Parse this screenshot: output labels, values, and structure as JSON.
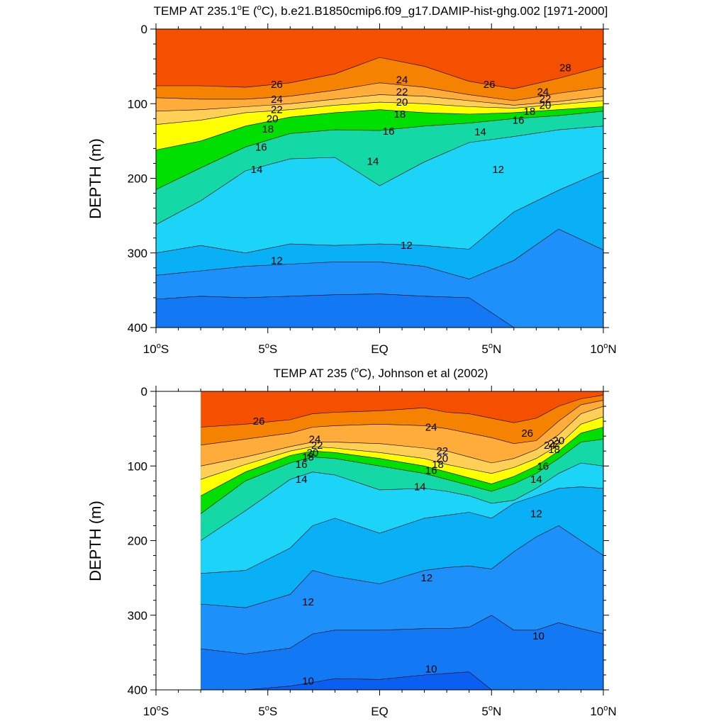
{
  "chart_data": [
    {
      "type": "heatmap",
      "title": "TEMP AT 235.1°E (°C), b.e21.B1850cmip6.f09_g17.DAMIP-hist-ghg.002 [1971-2000]",
      "title_parts": {
        "pre": "TEMP AT 235.1",
        "deg1": "o",
        "mid": "E (",
        "deg2": "o",
        "post": "C), b.e21.B1850cmip6.f09_g17.DAMIP-hist-ghg.002 [1971-2000]"
      },
      "ylabel": "DEPTH (m)",
      "xlabel": "",
      "xlim": [
        -10,
        10
      ],
      "ylim": [
        400,
        0
      ],
      "x_ticks": [
        {
          "value": -10,
          "num": "10",
          "deg": "o",
          "suf": "S"
        },
        {
          "value": -5,
          "num": "5",
          "deg": "o",
          "suf": "S"
        },
        {
          "value": 0,
          "num": "EQ",
          "deg": "",
          "suf": ""
        },
        {
          "value": 5,
          "num": "5",
          "deg": "o",
          "suf": "N"
        },
        {
          "value": 10,
          "num": "10",
          "deg": "o",
          "suf": "N"
        }
      ],
      "y_ticks": [
        "0",
        "100",
        "200",
        "300",
        "400"
      ],
      "data_xlim": [
        -10,
        10
      ],
      "contour_levels": [
        9,
        10,
        11,
        12,
        13,
        14,
        15,
        16,
        17,
        18,
        19,
        20,
        21,
        22,
        23,
        24,
        25,
        26,
        27,
        28
      ],
      "isotherm_depths": {
        "x": [
          -10,
          -8,
          -6,
          -4,
          -2,
          0,
          2,
          4,
          6,
          8,
          10
        ],
        "t26": [
          76,
          76,
          78,
          72,
          60,
          38,
          50,
          70,
          80,
          66,
          50
        ],
        "t24": [
          92,
          94,
          94,
          90,
          82,
          72,
          78,
          88,
          96,
          86,
          78
        ],
        "t22": [
          110,
          108,
          104,
          100,
          94,
          88,
          90,
          96,
          102,
          97,
          90
        ],
        "t20": [
          128,
          122,
          112,
          108,
          102,
          98,
          100,
          104,
          106,
          101,
          96
        ],
        "t18": [
          162,
          150,
          130,
          118,
          112,
          108,
          112,
          114,
          112,
          108,
          104
        ],
        "t16": [
          215,
          186,
          158,
          140,
          135,
          136,
          130,
          126,
          120,
          116,
          110
        ],
        "t14": [
          262,
          230,
          190,
          174,
          172,
          210,
          178,
          152,
          144,
          135,
          130
        ],
        "t12": [
          300,
          290,
          300,
          288,
          290,
          288,
          290,
          295,
          245,
          216,
          190
        ],
        "t11": [
          330,
          324,
          318,
          315,
          312,
          312,
          318,
          335,
          310,
          268,
          296
        ],
        "t10": [
          362,
          358,
          360,
          358,
          356,
          355,
          358,
          360,
          400,
          400,
          400
        ]
      },
      "contour_labels": [
        {
          "text": "26",
          "x": -4.6,
          "y": 74
        },
        {
          "text": "24",
          "x": -4.6,
          "y": 94
        },
        {
          "text": "22",
          "x": -4.6,
          "y": 108
        },
        {
          "text": "20",
          "x": -4.8,
          "y": 120
        },
        {
          "text": "18",
          "x": -5.0,
          "y": 134
        },
        {
          "text": "16",
          "x": -5.3,
          "y": 158
        },
        {
          "text": "14",
          "x": -5.5,
          "y": 188
        },
        {
          "text": "12",
          "x": -4.6,
          "y": 310
        },
        {
          "text": "24",
          "x": 1.0,
          "y": 68
        },
        {
          "text": "22",
          "x": 1.0,
          "y": 84
        },
        {
          "text": "20",
          "x": 1.0,
          "y": 98
        },
        {
          "text": "18",
          "x": 0.9,
          "y": 114
        },
        {
          "text": "16",
          "x": 0.4,
          "y": 137
        },
        {
          "text": "14",
          "x": -0.3,
          "y": 177
        },
        {
          "text": "12",
          "x": 1.2,
          "y": 290
        },
        {
          "text": "26",
          "x": 4.9,
          "y": 74
        },
        {
          "text": "14",
          "x": 4.5,
          "y": 138
        },
        {
          "text": "12",
          "x": 5.3,
          "y": 188
        },
        {
          "text": "28",
          "x": 8.3,
          "y": 52
        },
        {
          "text": "24",
          "x": 7.3,
          "y": 84
        },
        {
          "text": "22",
          "x": 7.4,
          "y": 93
        },
        {
          "text": "20",
          "x": 7.4,
          "y": 102
        },
        {
          "text": "18",
          "x": 6.7,
          "y": 110
        },
        {
          "text": "16",
          "x": 6.2,
          "y": 122
        }
      ]
    },
    {
      "type": "heatmap",
      "title": "TEMP AT 235 (°C), Johnson et al (2002)",
      "title_parts": {
        "pre": "TEMP AT 235 (",
        "deg1": "o",
        "mid": "C), Johnson et al (2002)",
        "deg2": "",
        "post": ""
      },
      "ylabel": "DEPTH (m)",
      "xlabel": "",
      "xlim": [
        -10,
        10
      ],
      "ylim": [
        400,
        0
      ],
      "x_ticks": [
        {
          "value": -10,
          "num": "10",
          "deg": "o",
          "suf": "S"
        },
        {
          "value": -5,
          "num": "5",
          "deg": "o",
          "suf": "S"
        },
        {
          "value": 0,
          "num": "EQ",
          "deg": "",
          "suf": ""
        },
        {
          "value": 5,
          "num": "5",
          "deg": "o",
          "suf": "N"
        },
        {
          "value": 10,
          "num": "10",
          "deg": "o",
          "suf": "N"
        }
      ],
      "y_ticks": [
        "0",
        "100",
        "200",
        "300",
        "400"
      ],
      "data_xlim": [
        -8,
        10
      ],
      "contour_levels": [
        9,
        10,
        11,
        12,
        13,
        14,
        15,
        16,
        17,
        18,
        19,
        20,
        21,
        22,
        23,
        24,
        25,
        26,
        27,
        28
      ],
      "isotherm_depths": {
        "x": [
          -8,
          -6,
          -4,
          -3,
          -2,
          0,
          2,
          3,
          4,
          5,
          6,
          7,
          8,
          9,
          10
        ],
        "t26": [
          48,
          44,
          38,
          30,
          28,
          26,
          22,
          28,
          30,
          36,
          42,
          36,
          20,
          10,
          5
        ],
        "t24": [
          72,
          64,
          56,
          48,
          46,
          44,
          46,
          50,
          56,
          62,
          70,
          66,
          40,
          18,
          12
        ],
        "t22": [
          100,
          88,
          74,
          68,
          68,
          70,
          76,
          80,
          88,
          96,
          90,
          78,
          58,
          30,
          20
        ],
        "t20": [
          118,
          98,
          80,
          74,
          76,
          82,
          90,
          98,
          104,
          110,
          102,
          90,
          72,
          44,
          34
        ],
        "t18": [
          140,
          108,
          86,
          80,
          82,
          90,
          100,
          108,
          116,
          124,
          114,
          100,
          80,
          56,
          48
        ],
        "t16": [
          164,
          120,
          96,
          88,
          90,
          100,
          110,
          118,
          126,
          134,
          124,
          110,
          90,
          68,
          64
        ],
        "t14": [
          200,
          160,
          118,
          108,
          112,
          132,
          130,
          134,
          140,
          150,
          146,
          130,
          110,
          96,
          100
        ],
        "t12": [
          244,
          240,
          210,
          180,
          170,
          190,
          170,
          166,
          162,
          170,
          150,
          140,
          130,
          128,
          130
        ],
        "t11": [
          285,
          290,
          272,
          240,
          248,
          258,
          240,
          236,
          234,
          238,
          215,
          195,
          180,
          200,
          220
        ],
        "t10": [
          345,
          352,
          344,
          325,
          320,
          320,
          318,
          318,
          316,
          300,
          320,
          320,
          310,
          318,
          325
        ],
        "t9": [
          400,
          400,
          395,
          390,
          385,
          386,
          380,
          378,
          376,
          400,
          400,
          400,
          400,
          400,
          400
        ]
      },
      "contour_labels": [
        {
          "text": "26",
          "x": -5.4,
          "y": 40
        },
        {
          "text": "24",
          "x": -2.9,
          "y": 64
        },
        {
          "text": "22",
          "x": -2.8,
          "y": 72
        },
        {
          "text": "20",
          "x": -3.0,
          "y": 82
        },
        {
          "text": "18",
          "x": -3.2,
          "y": 88
        },
        {
          "text": "16",
          "x": -3.5,
          "y": 98
        },
        {
          "text": "14",
          "x": -3.5,
          "y": 118
        },
        {
          "text": "12",
          "x": -3.2,
          "y": 282
        },
        {
          "text": "10",
          "x": -3.2,
          "y": 388
        },
        {
          "text": "24",
          "x": 2.3,
          "y": 48
        },
        {
          "text": "22",
          "x": 2.8,
          "y": 80
        },
        {
          "text": "20",
          "x": 2.8,
          "y": 90
        },
        {
          "text": "18",
          "x": 2.6,
          "y": 98
        },
        {
          "text": "16",
          "x": 2.3,
          "y": 106
        },
        {
          "text": "14",
          "x": 1.8,
          "y": 128
        },
        {
          "text": "12",
          "x": 2.1,
          "y": 250
        },
        {
          "text": "10",
          "x": 2.3,
          "y": 372
        },
        {
          "text": "26",
          "x": 6.6,
          "y": 56
        },
        {
          "text": "24",
          "x": 7.6,
          "y": 72
        },
        {
          "text": "22",
          "x": 7.8,
          "y": 70
        },
        {
          "text": "20",
          "x": 8.0,
          "y": 66
        },
        {
          "text": "18",
          "x": 7.8,
          "y": 78
        },
        {
          "text": "16",
          "x": 7.3,
          "y": 100
        },
        {
          "text": "14",
          "x": 7.0,
          "y": 118
        },
        {
          "text": "12",
          "x": 7.0,
          "y": 164
        },
        {
          "text": "10",
          "x": 7.1,
          "y": 328
        }
      ]
    }
  ],
  "colors": {
    "temp_scale": {
      "9": "#0a5ff0",
      "10": "#1278f4",
      "11": "#1e90fa",
      "12": "#09b0f6",
      "13": "#07c4f7",
      "14": "#1cd4f8",
      "15": "#33e6f9",
      "16": "#14d9a6",
      "17": "#00ca3a",
      "18": "#00e000",
      "19": "#a0f400",
      "20": "#ffff00",
      "21": "#ffe23a",
      "22": "#ffd055",
      "23": "#ffc046",
      "24": "#ffac3a",
      "25": "#f9962e",
      "26": "#f58200",
      "27": "#f55000",
      "28": "#ff1800"
    }
  }
}
